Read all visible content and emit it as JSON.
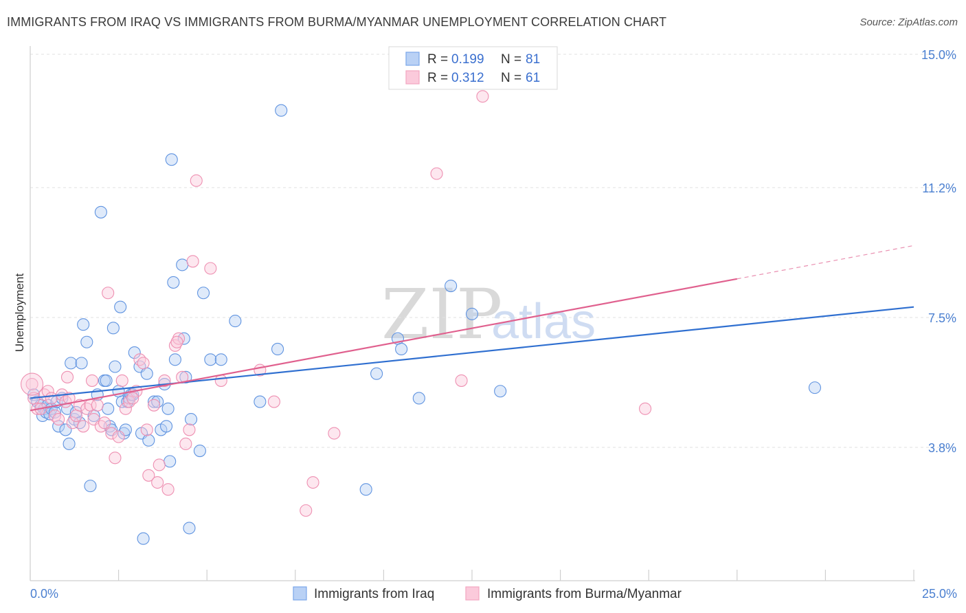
{
  "header": {
    "title": "IMMIGRANTS FROM IRAQ VS IMMIGRANTS FROM BURMA/MYANMAR UNEMPLOYMENT CORRELATION CHART",
    "source": "Source: ZipAtlas.com"
  },
  "legend_top": {
    "rows": [
      {
        "r_label": "R = ",
        "r_value": "0.199",
        "n_label": "N = ",
        "n_value": "81"
      },
      {
        "r_label": "R = ",
        "r_value": "0.312",
        "n_label": "N = ",
        "n_value": "61"
      }
    ]
  },
  "watermark": {
    "zip": "ZIP",
    "atlas": "atlas"
  },
  "chart_data": {
    "type": "scatter",
    "title": "IMMIGRANTS FROM IRAQ VS IMMIGRANTS FROM BURMA/MYANMAR UNEMPLOYMENT CORRELATION CHART",
    "ylabel": "Unemployment",
    "xlabel": "",
    "xlim": [
      0,
      25
    ],
    "ylim": [
      0,
      15
    ],
    "x_tick_labels": [
      "0.0%",
      "25.0%"
    ],
    "y_ticks": [
      3.8,
      7.5,
      11.2,
      15.0
    ],
    "y_tick_labels": [
      "3.8%",
      "7.5%",
      "11.2%",
      "15.0%"
    ],
    "grid": true,
    "legend_position": "top-center",
    "colors": {
      "iraq": "#7aa6e8",
      "burma": "#f4a6c0",
      "iraq_line": "#2f6fd0",
      "burma_line": "#e0608e"
    },
    "series": [
      {
        "name": "Immigrants from Iraq",
        "color": "#7aa6e8",
        "trend": {
          "x": [
            0,
            25
          ],
          "y": [
            5.2,
            7.8
          ]
        },
        "points": [
          [
            0.1,
            5.3
          ],
          [
            0.2,
            5.1
          ],
          [
            0.3,
            5.0
          ],
          [
            0.35,
            4.7
          ],
          [
            0.4,
            4.9
          ],
          [
            0.45,
            4.8
          ],
          [
            0.5,
            5.0
          ],
          [
            0.55,
            4.75
          ],
          [
            0.6,
            4.9
          ],
          [
            0.7,
            4.8
          ],
          [
            0.75,
            5.1
          ],
          [
            0.8,
            4.4
          ],
          [
            0.9,
            5.2
          ],
          [
            1.0,
            4.3
          ],
          [
            1.05,
            4.9
          ],
          [
            1.1,
            3.9
          ],
          [
            1.15,
            6.2
          ],
          [
            1.25,
            4.6
          ],
          [
            1.3,
            4.8
          ],
          [
            1.4,
            4.5
          ],
          [
            1.45,
            6.2
          ],
          [
            1.5,
            7.3
          ],
          [
            1.6,
            6.8
          ],
          [
            1.7,
            2.7
          ],
          [
            1.8,
            4.7
          ],
          [
            1.9,
            5.3
          ],
          [
            2.0,
            10.5
          ],
          [
            2.1,
            5.7
          ],
          [
            2.15,
            5.7
          ],
          [
            2.2,
            4.9
          ],
          [
            2.25,
            4.4
          ],
          [
            2.3,
            4.3
          ],
          [
            2.35,
            7.2
          ],
          [
            2.4,
            6.1
          ],
          [
            2.5,
            5.4
          ],
          [
            2.55,
            7.8
          ],
          [
            2.6,
            5.1
          ],
          [
            2.65,
            4.2
          ],
          [
            2.7,
            4.3
          ],
          [
            2.75,
            5.1
          ],
          [
            2.8,
            5.2
          ],
          [
            2.85,
            5.3
          ],
          [
            2.9,
            5.3
          ],
          [
            2.95,
            6.5
          ],
          [
            3.1,
            6.1
          ],
          [
            3.15,
            4.2
          ],
          [
            3.2,
            1.2
          ],
          [
            3.3,
            5.9
          ],
          [
            3.35,
            4.0
          ],
          [
            3.5,
            5.1
          ],
          [
            3.6,
            5.1
          ],
          [
            3.7,
            4.3
          ],
          [
            3.8,
            5.6
          ],
          [
            3.85,
            4.4
          ],
          [
            3.9,
            4.9
          ],
          [
            3.95,
            3.4
          ],
          [
            4.0,
            12.0
          ],
          [
            4.05,
            8.5
          ],
          [
            4.1,
            6.3
          ],
          [
            4.3,
            9.0
          ],
          [
            4.35,
            6.9
          ],
          [
            4.4,
            5.8
          ],
          [
            4.5,
            1.5
          ],
          [
            4.55,
            4.6
          ],
          [
            4.8,
            3.7
          ],
          [
            4.9,
            8.2
          ],
          [
            5.1,
            6.3
          ],
          [
            5.4,
            6.3
          ],
          [
            5.8,
            7.4
          ],
          [
            6.5,
            5.1
          ],
          [
            7.0,
            6.6
          ],
          [
            7.1,
            13.4
          ],
          [
            9.5,
            2.6
          ],
          [
            9.8,
            5.9
          ],
          [
            10.4,
            6.9
          ],
          [
            10.5,
            6.6
          ],
          [
            11.0,
            5.2
          ],
          [
            11.9,
            8.4
          ],
          [
            12.5,
            7.6
          ],
          [
            13.3,
            5.4
          ],
          [
            22.2,
            5.5
          ]
        ]
      },
      {
        "name": "Immigrants from Burma/Myanmar",
        "color": "#f4a6c0",
        "trend": {
          "x": [
            0,
            20
          ],
          "y": [
            4.85,
            8.6
          ]
        },
        "trend_dashed": {
          "x": [
            20,
            25
          ],
          "y": [
            8.6,
            9.55
          ]
        },
        "points": [
          [
            0.05,
            5.6
          ],
          [
            0.1,
            5.2
          ],
          [
            0.2,
            4.9
          ],
          [
            0.3,
            4.9
          ],
          [
            0.4,
            5.3
          ],
          [
            0.5,
            5.4
          ],
          [
            0.6,
            5.2
          ],
          [
            0.7,
            4.7
          ],
          [
            0.8,
            4.6
          ],
          [
            0.9,
            5.3
          ],
          [
            1.0,
            5.1
          ],
          [
            1.05,
            5.8
          ],
          [
            1.1,
            5.2
          ],
          [
            1.2,
            4.5
          ],
          [
            1.3,
            4.7
          ],
          [
            1.4,
            5.0
          ],
          [
            1.5,
            4.4
          ],
          [
            1.6,
            4.9
          ],
          [
            1.7,
            5.0
          ],
          [
            1.75,
            5.7
          ],
          [
            1.8,
            4.6
          ],
          [
            1.9,
            5.0
          ],
          [
            2.0,
            4.4
          ],
          [
            2.1,
            4.5
          ],
          [
            2.2,
            8.2
          ],
          [
            2.3,
            4.2
          ],
          [
            2.4,
            3.5
          ],
          [
            2.5,
            4.1
          ],
          [
            2.6,
            5.7
          ],
          [
            2.7,
            4.9
          ],
          [
            2.8,
            5.1
          ],
          [
            3.0,
            5.4
          ],
          [
            3.1,
            6.3
          ],
          [
            3.2,
            6.2
          ],
          [
            3.3,
            4.3
          ],
          [
            3.35,
            3.0
          ],
          [
            3.5,
            5.0
          ],
          [
            3.6,
            2.8
          ],
          [
            3.65,
            3.3
          ],
          [
            3.8,
            5.7
          ],
          [
            3.9,
            2.6
          ],
          [
            4.1,
            6.7
          ],
          [
            4.2,
            6.9
          ],
          [
            4.3,
            5.8
          ],
          [
            4.4,
            3.9
          ],
          [
            4.5,
            4.3
          ],
          [
            4.6,
            9.1
          ],
          [
            4.7,
            11.4
          ],
          [
            5.1,
            8.9
          ],
          [
            5.4,
            5.7
          ],
          [
            6.5,
            6.0
          ],
          [
            6.9,
            5.1
          ],
          [
            7.8,
            2.0
          ],
          [
            8.0,
            2.8
          ],
          [
            8.6,
            4.2
          ],
          [
            11.5,
            11.6
          ],
          [
            12.2,
            5.7
          ],
          [
            12.8,
            13.8
          ],
          [
            17.4,
            4.9
          ],
          [
            4.15,
            6.8
          ],
          [
            2.9,
            5.2
          ]
        ]
      }
    ]
  },
  "bottom_legend": {
    "items": [
      {
        "label": "Immigrants from Iraq"
      },
      {
        "label": "Immigrants from Burma/Myanmar"
      }
    ]
  }
}
